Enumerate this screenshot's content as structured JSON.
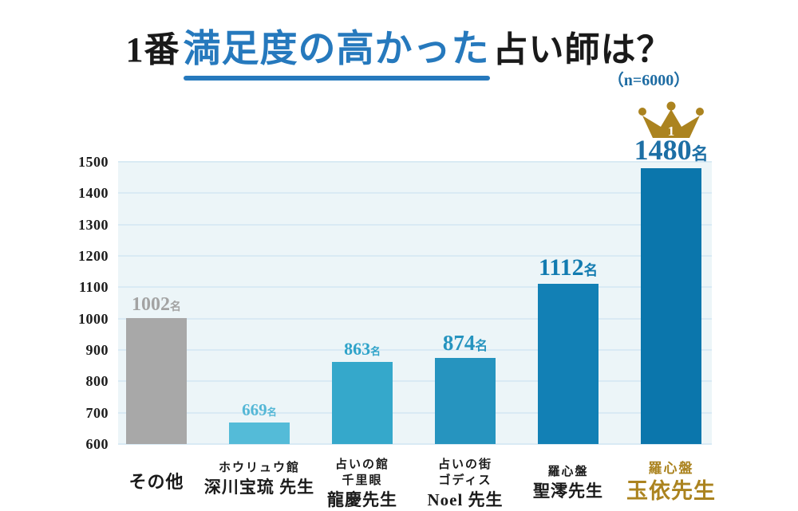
{
  "title": {
    "prefix": "1番",
    "highlight": "満足度の高かった",
    "suffix": "占い師は？",
    "sample_note": "（n=6000）"
  },
  "colors": {
    "background": "#ffffff",
    "title_black": "#1a1a1a",
    "title_blue": "#2679bd",
    "note_blue": "#1e6ca3",
    "plot_bg": "#ecf5f8",
    "gridline": "#d9eaf4",
    "axis_text": "#1c1c1c",
    "gold": "#ab831f",
    "crown_badge_text": "#ffffff"
  },
  "chart_data": {
    "type": "bar",
    "title": "1番満足度の高かった占い師は？",
    "sample_size_note": "（n=6000）",
    "unit": "名",
    "ylim": [
      600,
      1500
    ],
    "ytick_step": 100,
    "yticks": [
      600,
      700,
      800,
      900,
      1000,
      1100,
      1200,
      1300,
      1400,
      1500
    ],
    "grid": true,
    "legend": "none",
    "categories": [
      "その他",
      "ホウリュウ館 深川宝琉 先生",
      "占いの館 千里眼 龍慶先生",
      "占いの街 ゴディス Noel 先生",
      "羅心盤 聖澪先生",
      "羅心盤 玉依先生"
    ],
    "values": [
      1002,
      669,
      863,
      874,
      1112,
      1480
    ],
    "bar_colors": [
      "#a8a8a8",
      "#54bbd8",
      "#35a8cb",
      "#2694bf",
      "#1280b5",
      "#0b76ac"
    ],
    "label_colors": [
      "#a3a3a3",
      "#54b7d6",
      "#2fa3c9",
      "#2694bf",
      "#127bb0",
      "#1d6fa5"
    ],
    "label_sizes": [
      24,
      21,
      22,
      27,
      30,
      36
    ],
    "x_labels": [
      {
        "lines": [
          "その他"
        ],
        "highlight": false
      },
      {
        "lines": [
          "ホウリュウ館",
          "深川宝琉 先生"
        ],
        "highlight": false
      },
      {
        "lines": [
          "占いの館",
          "千里眼",
          "龍慶先生"
        ],
        "highlight": false
      },
      {
        "lines": [
          "占いの街",
          "ゴディス",
          "Noel 先生"
        ],
        "highlight": false
      },
      {
        "lines": [
          "羅心盤",
          "聖澪先生"
        ],
        "highlight": false
      },
      {
        "lines": [
          "羅心盤",
          "玉依先生"
        ],
        "highlight": true
      }
    ],
    "winner": {
      "rank_badge": "1",
      "category": "羅心盤 玉依先生",
      "value": 1480
    }
  }
}
